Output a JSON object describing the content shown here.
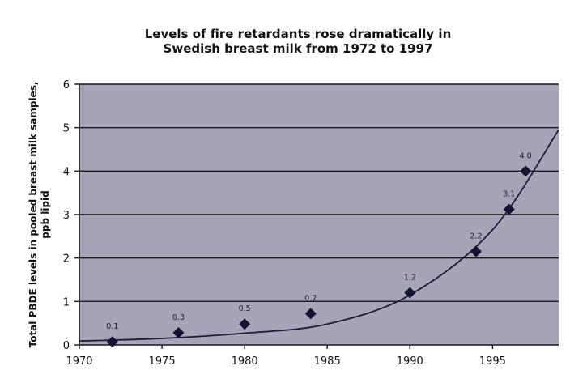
{
  "chart_data": {
    "type": "scatter",
    "title": "Levels of fire retardants rose dramatically in Swedish breast milk from 1972 to 1997",
    "title_lines": [
      "Levels of fire retardants rose dramatically in",
      "Swedish breast milk from 1972 to 1997"
    ],
    "xlabel": "",
    "ylabel": "Total PBDE levels in pooled breast milk samples, ppb lipid",
    "ylabel_lines": [
      "Total PBDE levels in pooled breast milk samples,",
      "ppb lipid"
    ],
    "xlim": [
      1970,
      1999
    ],
    "ylim": [
      0,
      6
    ],
    "x_ticks": [
      1970,
      1975,
      1980,
      1985,
      1990,
      1995
    ],
    "y_ticks": [
      0,
      1,
      2,
      3,
      4,
      5,
      6
    ],
    "grid": "horizontal",
    "plot_background": "#a8a4b8",
    "marker": "diamond",
    "marker_color": "#141432",
    "series": [
      {
        "x": [
          1972,
          1976,
          1980,
          1984,
          1990,
          1994,
          1996,
          1997
        ],
        "y": [
          0.07,
          0.28,
          0.48,
          0.72,
          1.2,
          2.15,
          3.12,
          4.0
        ],
        "labels": [
          "0.1",
          "0.3",
          "0.5",
          "0.7",
          "1.2",
          "2.2",
          "3.1",
          "4.0"
        ]
      }
    ],
    "trendline": {
      "type": "exponential",
      "x": [
        1970,
        1975,
        1980,
        1985,
        1990,
        1995,
        1999
      ],
      "y": [
        0.09,
        0.15,
        0.27,
        0.48,
        1.15,
        2.65,
        4.95
      ]
    }
  }
}
